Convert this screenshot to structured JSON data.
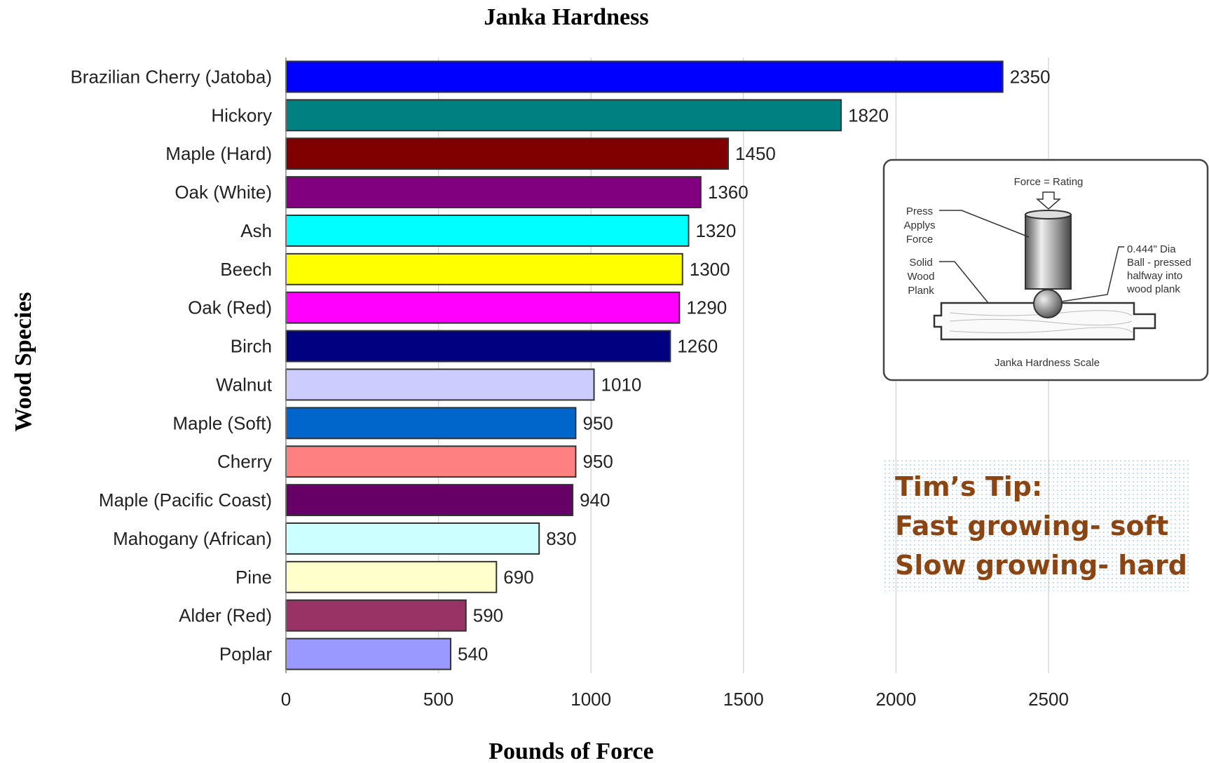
{
  "chart_data": {
    "type": "bar",
    "orientation": "horizontal",
    "title": "Janka Hardness",
    "xlabel": "Pounds of Force",
    "ylabel": "Wood Species",
    "xlim": [
      0,
      2500
    ],
    "xticks": [
      0,
      500,
      1000,
      1500,
      2000,
      2500
    ],
    "grid": true,
    "categories": [
      "Brazilian Cherry (Jatoba)",
      "Hickory",
      "Maple (Hard)",
      "Oak (White)",
      "Ash",
      "Beech",
      "Oak (Red)",
      "Birch",
      "Walnut",
      "Maple (Soft)",
      "Cherry",
      "Maple (Pacific Coast)",
      "Mahogany (African)",
      "Pine",
      "Alder (Red)",
      "Poplar"
    ],
    "values": [
      2350,
      1820,
      1450,
      1360,
      1320,
      1300,
      1290,
      1260,
      1010,
      950,
      950,
      940,
      830,
      690,
      590,
      540
    ],
    "colors": [
      "#0000FF",
      "#008080",
      "#800000",
      "#800080",
      "#00FFFF",
      "#FFFF00",
      "#FF00FF",
      "#000080",
      "#CCCCFF",
      "#0066CC",
      "#FF8080",
      "#660066",
      "#CCFFFF",
      "#FFFFCC",
      "#993366",
      "#9999FF"
    ]
  },
  "inset": {
    "force_label": "Force = Rating",
    "press_label": [
      "Press",
      "Applys",
      "Force"
    ],
    "plank_label": [
      "Solid",
      "Wood",
      "Plank"
    ],
    "ball_label": [
      "0.444\" Dia",
      "Ball - pressed",
      "halfway into",
      "wood plank"
    ],
    "caption": "Janka Hardness Scale"
  },
  "tip": {
    "lines": [
      "Tim’s Tip:",
      "Fast growing- soft",
      "Slow growing- hard"
    ],
    "color": "#8B4513"
  }
}
